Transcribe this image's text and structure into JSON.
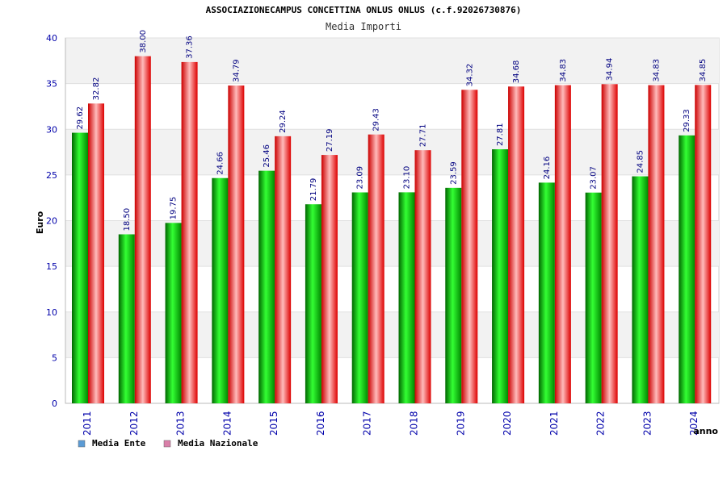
{
  "chart_data": {
    "type": "bar",
    "title": "ASSOCIAZIONECAMPUS CONCETTINA ONLUS ONLUS (c.f.92026730876)",
    "subtitle": "Media Importi",
    "ylabel": "Euro",
    "xlabel": "anno",
    "ylim": [
      0,
      40
    ],
    "yticks": [
      0,
      5,
      10,
      15,
      20,
      25,
      30,
      35,
      40
    ],
    "grid": true,
    "legend_position": "bottom-left",
    "categories": [
      "2011",
      "2012",
      "2013",
      "2014",
      "2015",
      "2016",
      "2017",
      "2018",
      "2019",
      "2020",
      "2021",
      "2022",
      "2023",
      "2024"
    ],
    "series": [
      {
        "name": "Media Ente",
        "color": "#00cc00",
        "legend_color": "#5b9bd5",
        "values": [
          29.62,
          18.5,
          19.75,
          24.66,
          25.46,
          21.79,
          23.09,
          23.1,
          23.59,
          27.81,
          24.16,
          23.07,
          24.85,
          29.33
        ],
        "labels": [
          "29.62",
          "18.50",
          "19.75",
          "24.66",
          "25.46",
          "21.79",
          "23.09",
          "23.10",
          "23.59",
          "27.81",
          "24.16",
          "23.07",
          "24.85",
          "29.33"
        ]
      },
      {
        "name": "Media Nazionale",
        "color": "#ee1111",
        "legend_color": "#d97fa8",
        "values": [
          32.82,
          38.0,
          37.36,
          34.79,
          29.24,
          27.19,
          29.43,
          27.71,
          34.32,
          34.68,
          34.83,
          34.94,
          34.83,
          34.85
        ],
        "labels": [
          "32.82",
          "38.00",
          "37.36",
          "34.79",
          "29.24",
          "27.19",
          "29.43",
          "27.71",
          "34.32",
          "34.68",
          "34.83",
          "34.94",
          "34.83",
          "34.85"
        ]
      }
    ]
  }
}
